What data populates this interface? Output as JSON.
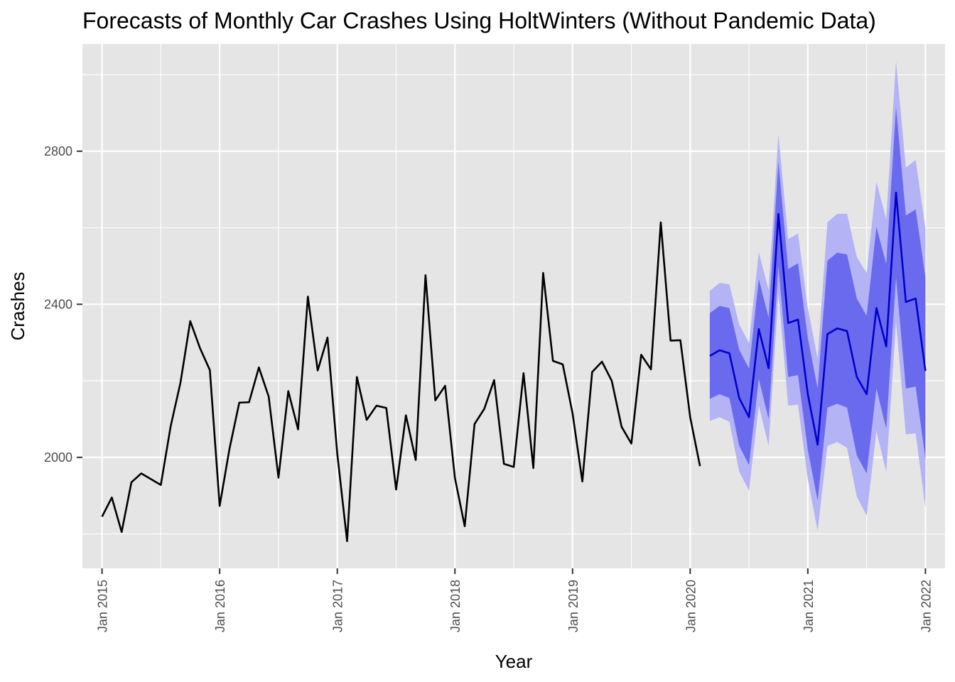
{
  "chart_data": {
    "type": "line",
    "title": "Forecasts of Monthly Car Crashes Using HoltWinters (Without Pandemic Data)",
    "xlabel": "Year",
    "ylabel": "Crashes",
    "ylim": [
      1710,
      3080
    ],
    "xlim": [
      "2014-11-01",
      "2022-03-01"
    ],
    "y_ticks": [
      2000,
      2400,
      2800
    ],
    "x_ticks": [
      "Jan 2015",
      "Jan 2016",
      "Jan 2017",
      "Jan 2018",
      "Jan 2019",
      "Jan 2020",
      "Jan 2021",
      "Jan 2022"
    ],
    "grid": true,
    "legend": "none",
    "colors": {
      "panel": "#e5e5e5",
      "grid": "#ffffff",
      "observed": "#000000",
      "forecast": "#0000cc",
      "band80": "#6a6aee",
      "band95": "#b3b3f5"
    },
    "observed": {
      "start": "2015-01",
      "values": [
        1845,
        1895,
        1805,
        1935,
        1958,
        1943,
        1928,
        2081,
        2195,
        2356,
        2285,
        2228,
        1873,
        2022,
        2143,
        2144,
        2235,
        2159,
        1947,
        2173,
        2073,
        2420,
        2227,
        2313,
        2009,
        1781,
        2210,
        2098,
        2135,
        2129,
        1916,
        2110,
        1993,
        2476,
        2149,
        2187,
        1946,
        1820,
        2087,
        2127,
        2202,
        1983,
        1975,
        2220,
        1972,
        2482,
        2252,
        2243,
        2115,
        1937,
        2223,
        2250,
        2200,
        2080,
        2036,
        2268,
        2230,
        2614,
        2305,
        2306,
        2105,
        1977
      ]
    },
    "forecast": {
      "start": "2020-03",
      "mean": [
        2265,
        2280,
        2272,
        2155,
        2105,
        2335,
        2233,
        2636,
        2351,
        2360,
        2165,
        2033,
        2322,
        2337,
        2330,
        2210,
        2165,
        2390,
        2290,
        2692,
        2406,
        2415,
        2226
      ],
      "lo80": [
        2153,
        2165,
        2155,
        2030,
        1980,
        2205,
        2100,
        2500,
        2210,
        2215,
        2020,
        1887,
        2130,
        2140,
        2130,
        2005,
        1958,
        2180,
        2075,
        2470,
        2180,
        2185,
        1995
      ],
      "hi80": [
        2377,
        2396,
        2390,
        2281,
        2232,
        2466,
        2365,
        2773,
        2492,
        2507,
        2312,
        2180,
        2514,
        2535,
        2530,
        2415,
        2370,
        2602,
        2505,
        2915,
        2632,
        2648,
        2470
      ],
      "lo95": [
        2095,
        2105,
        2093,
        1963,
        1913,
        2135,
        2030,
        2428,
        2135,
        2138,
        1943,
        1808,
        2030,
        2040,
        2025,
        1897,
        1848,
        2068,
        1962,
        2353,
        2060,
        2063,
        1868
      ],
      "hi95": [
        2435,
        2456,
        2452,
        2347,
        2299,
        2536,
        2437,
        2845,
        2570,
        2585,
        2390,
        2258,
        2614,
        2636,
        2637,
        2523,
        2482,
        2720,
        2622,
        3035,
        2757,
        2777,
        2598
      ]
    }
  }
}
